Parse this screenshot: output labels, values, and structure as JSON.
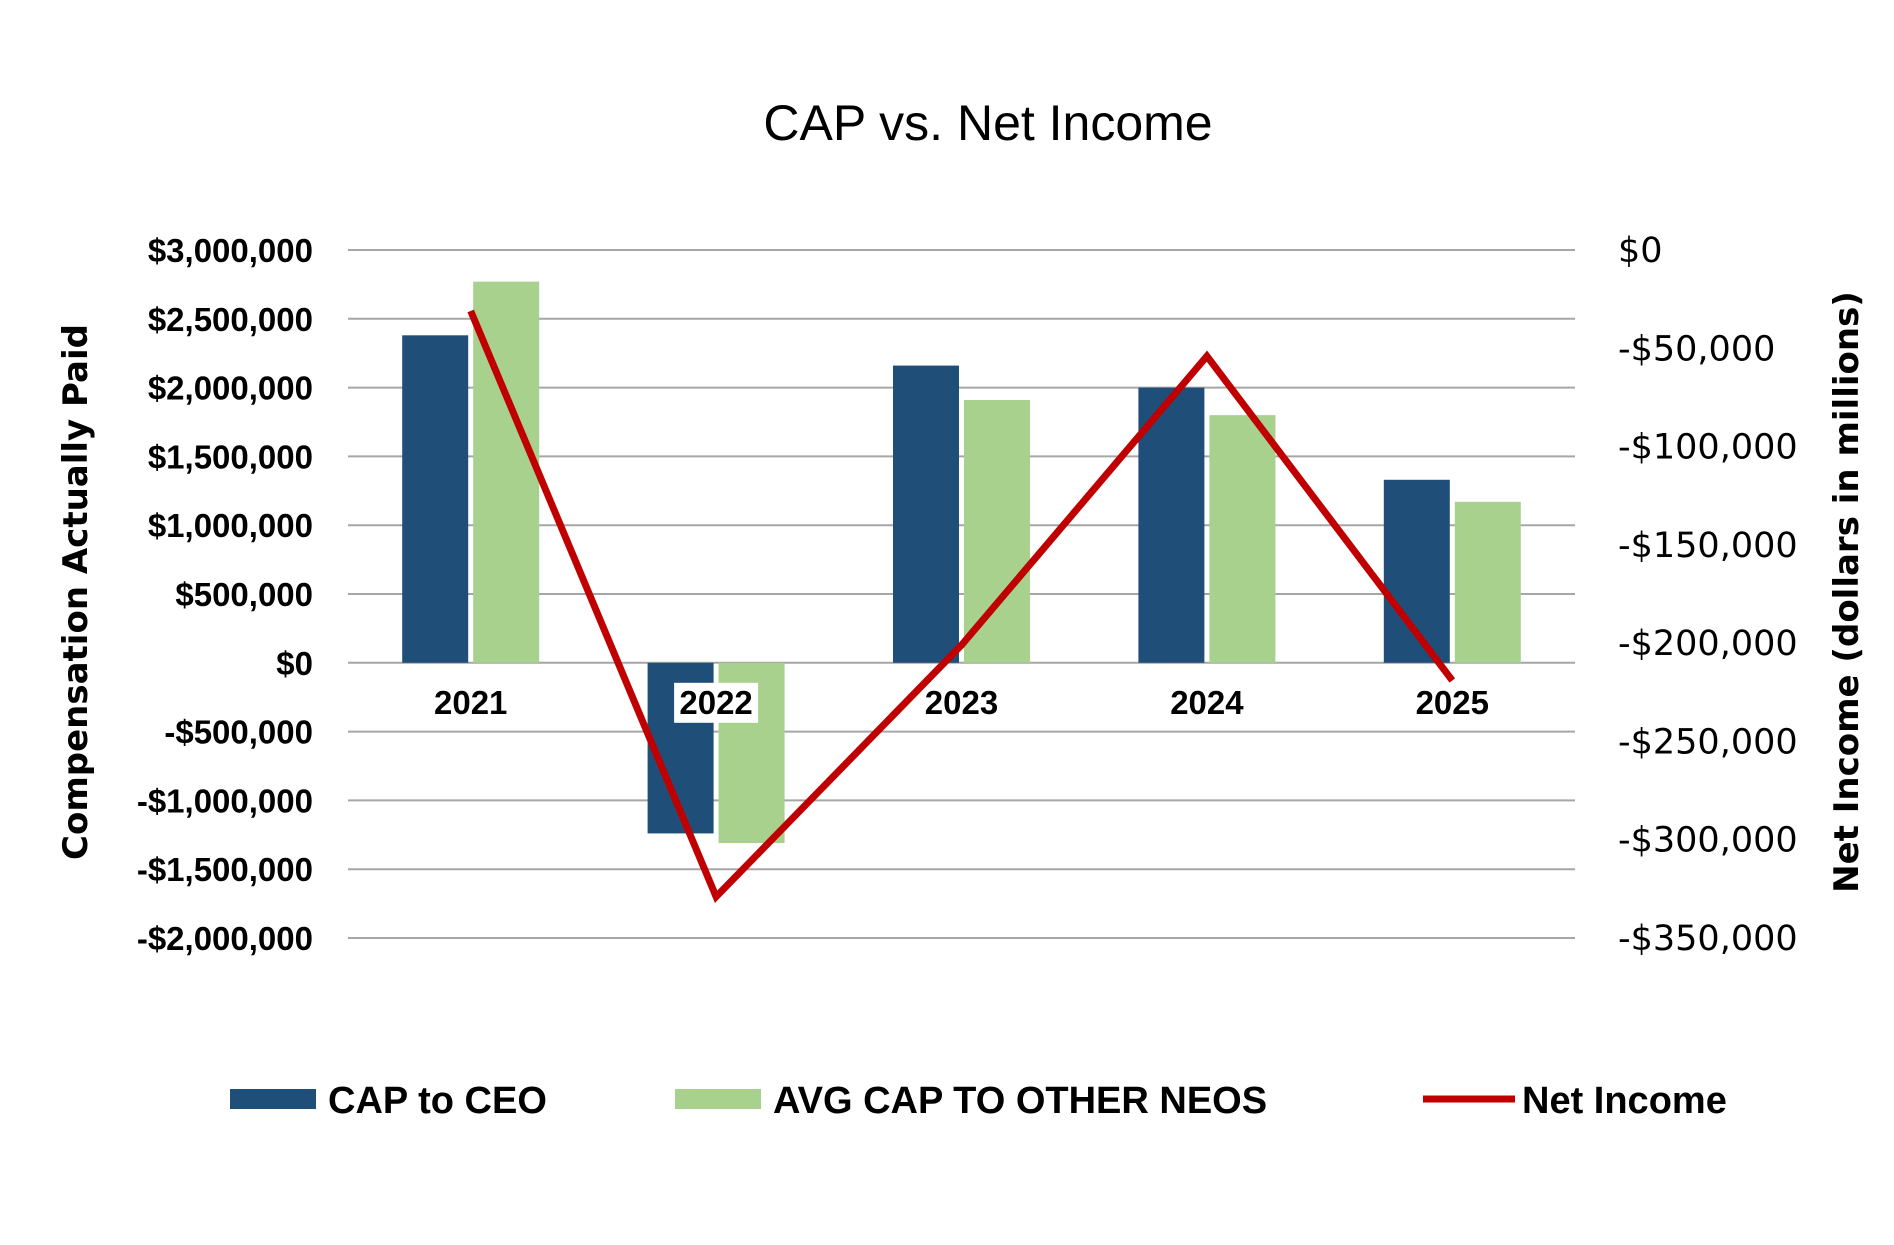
{
  "chart_data": {
    "type": "bar",
    "title": "CAP vs. Net Income",
    "categories": [
      "2021",
      "2022",
      "2023",
      "2024",
      "2025"
    ],
    "series": [
      {
        "name": "CAP to CEO",
        "type": "bar",
        "axis": "left",
        "color": "#1f4e79",
        "values": [
          2380000,
          -1240000,
          2160000,
          2000000,
          1330000
        ]
      },
      {
        "name": "AVG CAP TO OTHER NEOS",
        "type": "bar",
        "axis": "left",
        "color": "#a9d18e",
        "values": [
          2770000,
          -1310000,
          1910000,
          1800000,
          1170000
        ]
      },
      {
        "name": "Net Income",
        "type": "line",
        "axis": "right",
        "color": "#c00000",
        "values": [
          -31000,
          -329000,
          -201000,
          -54000,
          -219000
        ]
      }
    ],
    "left_axis": {
      "label": "Compensation Actually Paid",
      "ylim": [
        -2000000,
        3000000
      ],
      "ticks": [
        3000000,
        2500000,
        2000000,
        1500000,
        1000000,
        500000,
        0,
        -500000,
        -1000000,
        -1500000,
        -2000000
      ],
      "tick_labels": [
        "$3,000,000",
        "$2,500,000",
        "$2,000,000",
        "$1,500,000",
        "$1,000,000",
        "$500,000",
        "$0",
        "-$500,000",
        "-$1,000,000",
        "-$1,500,000",
        "-$2,000,000"
      ]
    },
    "right_axis": {
      "label": "Net Income (dollars in millions)",
      "ylim": [
        -350000,
        0
      ],
      "ticks": [
        0,
        -50000,
        -100000,
        -150000,
        -200000,
        -250000,
        -300000,
        -350000
      ],
      "tick_labels": [
        "$0",
        "-$50,000",
        "-$100,000",
        "-$150,000",
        "-$200,000",
        "-$250,000",
        "-$300,000",
        "-$350,000"
      ]
    },
    "grid": true,
    "legend": "bottom"
  }
}
